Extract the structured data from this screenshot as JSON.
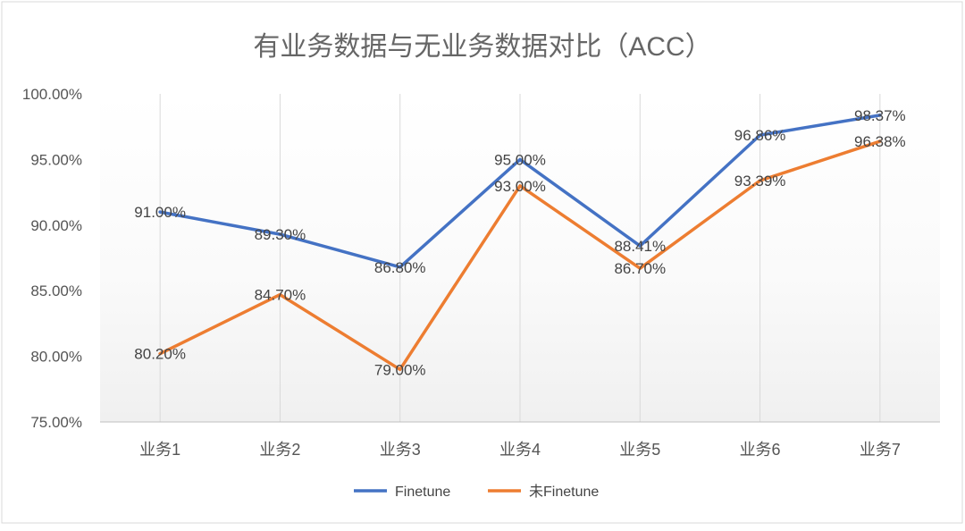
{
  "chart_data": {
    "type": "line",
    "title": "有业务数据与无业务数据对比（ACC）",
    "xlabel": "",
    "ylabel": "",
    "categories": [
      "业务1",
      "业务2",
      "业务3",
      "业务4",
      "业务5",
      "业务6",
      "业务7"
    ],
    "series": [
      {
        "name": "Finetune",
        "color": "#4472C4",
        "values": [
          91.0,
          89.3,
          86.8,
          95.0,
          88.41,
          96.86,
          98.37
        ],
        "labels": [
          "91.00%",
          "89.30%",
          "86.80%",
          "95.00%",
          "88.41%",
          "96.86%",
          "98.37%"
        ]
      },
      {
        "name": "未Finetune",
        "color": "#ED7D31",
        "values": [
          80.2,
          84.7,
          79.0,
          93.0,
          86.7,
          93.39,
          96.38
        ],
        "labels": [
          "80.20%",
          "84.70%",
          "79.00%",
          "93.00%",
          "86.70%",
          "93.39%",
          "96.38%"
        ]
      }
    ],
    "ylim": [
      75,
      100
    ],
    "yticks": [
      {
        "value": 100,
        "label": "100.00%"
      },
      {
        "value": 95,
        "label": "95.00%"
      },
      {
        "value": 90,
        "label": "90.00%"
      },
      {
        "value": 85,
        "label": "85.00%"
      },
      {
        "value": 80,
        "label": "80.00%"
      },
      {
        "value": 75,
        "label": "75.00%"
      }
    ],
    "grid": "vertical",
    "legend": "bottom"
  }
}
